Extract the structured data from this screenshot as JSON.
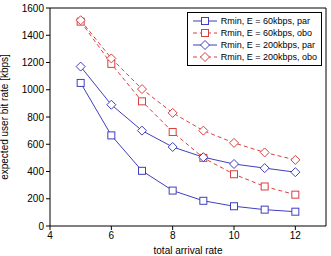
{
  "chart_data": {
    "type": "line",
    "x_label": "total arrival rate",
    "y_label": "expected user bit rate [kbps]",
    "x": [
      5,
      6,
      7,
      8,
      9,
      10,
      11,
      12
    ],
    "xlim": [
      4,
      13
    ],
    "xticks": [
      4,
      6,
      8,
      10,
      12
    ],
    "ylim": [
      0,
      1600
    ],
    "yticks": [
      0,
      200,
      400,
      600,
      800,
      1000,
      1200,
      1400,
      1600
    ],
    "grid": false,
    "legend": "upper right",
    "series": [
      {
        "name": "Rmin, E = 60kbps, par",
        "color": "#3f3fbf",
        "marker": "square",
        "line_style": "solid",
        "values": [
          1050,
          665,
          405,
          260,
          185,
          145,
          120,
          105
        ]
      },
      {
        "name": "Rmin, E = 60kbps, obo",
        "color": "#d9403f",
        "marker": "square",
        "line_style": "dashed",
        "values": [
          1500,
          1190,
          915,
          690,
          500,
          380,
          290,
          230
        ]
      },
      {
        "name": "Rmin, E = 200kbps, par",
        "color": "#3f3fbf",
        "marker": "diamond",
        "line_style": "solid",
        "values": [
          1170,
          890,
          700,
          580,
          505,
          455,
          425,
          395
        ]
      },
      {
        "name": "Rmin, E = 200kbps, obo",
        "color": "#d9403f",
        "marker": "diamond",
        "line_style": "dashed",
        "values": [
          1510,
          1230,
          1005,
          830,
          700,
          610,
          540,
          485
        ]
      }
    ]
  }
}
